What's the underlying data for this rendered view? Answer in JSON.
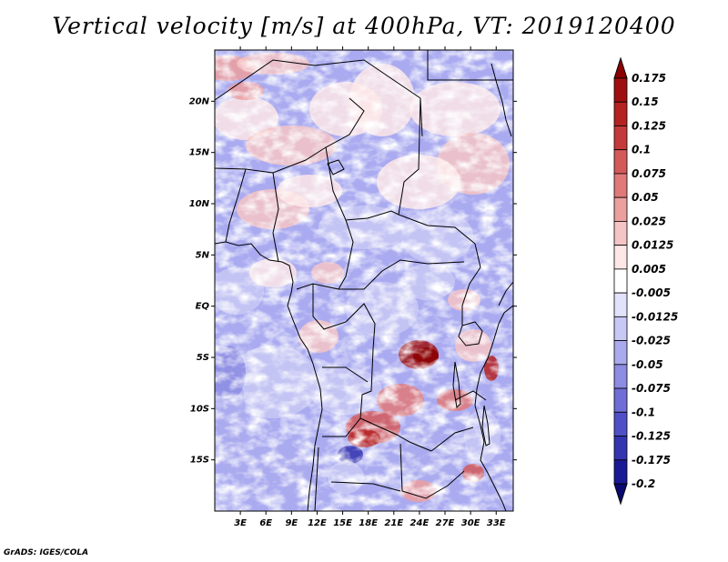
{
  "chart_data": {
    "type": "heatmap",
    "title": "Vertical velocity [m/s] at 400hPa, VT: 2019120400",
    "variable": "Vertical velocity",
    "units": "m/s",
    "level": "400hPa",
    "valid_time": "2019120400",
    "lon_range": [
      0,
      35
    ],
    "lat_range": [
      -20,
      25
    ],
    "lon_ticks": [
      "3E",
      "6E",
      "9E",
      "12E",
      "15E",
      "18E",
      "21E",
      "24E",
      "27E",
      "30E",
      "33E"
    ],
    "lon_tick_values": [
      3,
      6,
      9,
      12,
      15,
      18,
      21,
      24,
      27,
      30,
      33
    ],
    "lat_ticks": [
      "20N",
      "15N",
      "10N",
      "5N",
      "EQ",
      "5S",
      "10S",
      "15S"
    ],
    "lat_tick_values": [
      20,
      15,
      10,
      5,
      0,
      -5,
      -10,
      -15
    ],
    "colorbar": {
      "labels": [
        "0.175",
        "0.15",
        "0.125",
        "0.1",
        "0.075",
        "0.05",
        "0.025",
        "0.0125",
        "0.005",
        "-0.005",
        "-0.0125",
        "-0.025",
        "-0.05",
        "-0.075",
        "-0.1",
        "-0.125",
        "-0.175",
        "-0.2"
      ],
      "colors": [
        "#8b0000",
        "#9e1010",
        "#b52222",
        "#c43a3a",
        "#d45a5a",
        "#e07a7a",
        "#ec9f9f",
        "#f5c4c4",
        "#fde6e6",
        "#ffffff",
        "#e2e2fb",
        "#c8c8f5",
        "#aaaaee",
        "#8c8ce3",
        "#6e6ed6",
        "#5050c6",
        "#3434b0",
        "#1a1a96",
        "#0a0a70"
      ]
    },
    "notable_features": [
      {
        "description": "strong ascent",
        "lon": 24,
        "lat": -5,
        "value": 0.15
      },
      {
        "description": "strong ascent",
        "lon": 20,
        "lat": -13,
        "value": 0.125
      },
      {
        "description": "strong descent",
        "lon": 16,
        "lat": -15,
        "value": -0.175
      }
    ]
  },
  "footer": {
    "credit": "GrADS: IGES/COLA"
  }
}
